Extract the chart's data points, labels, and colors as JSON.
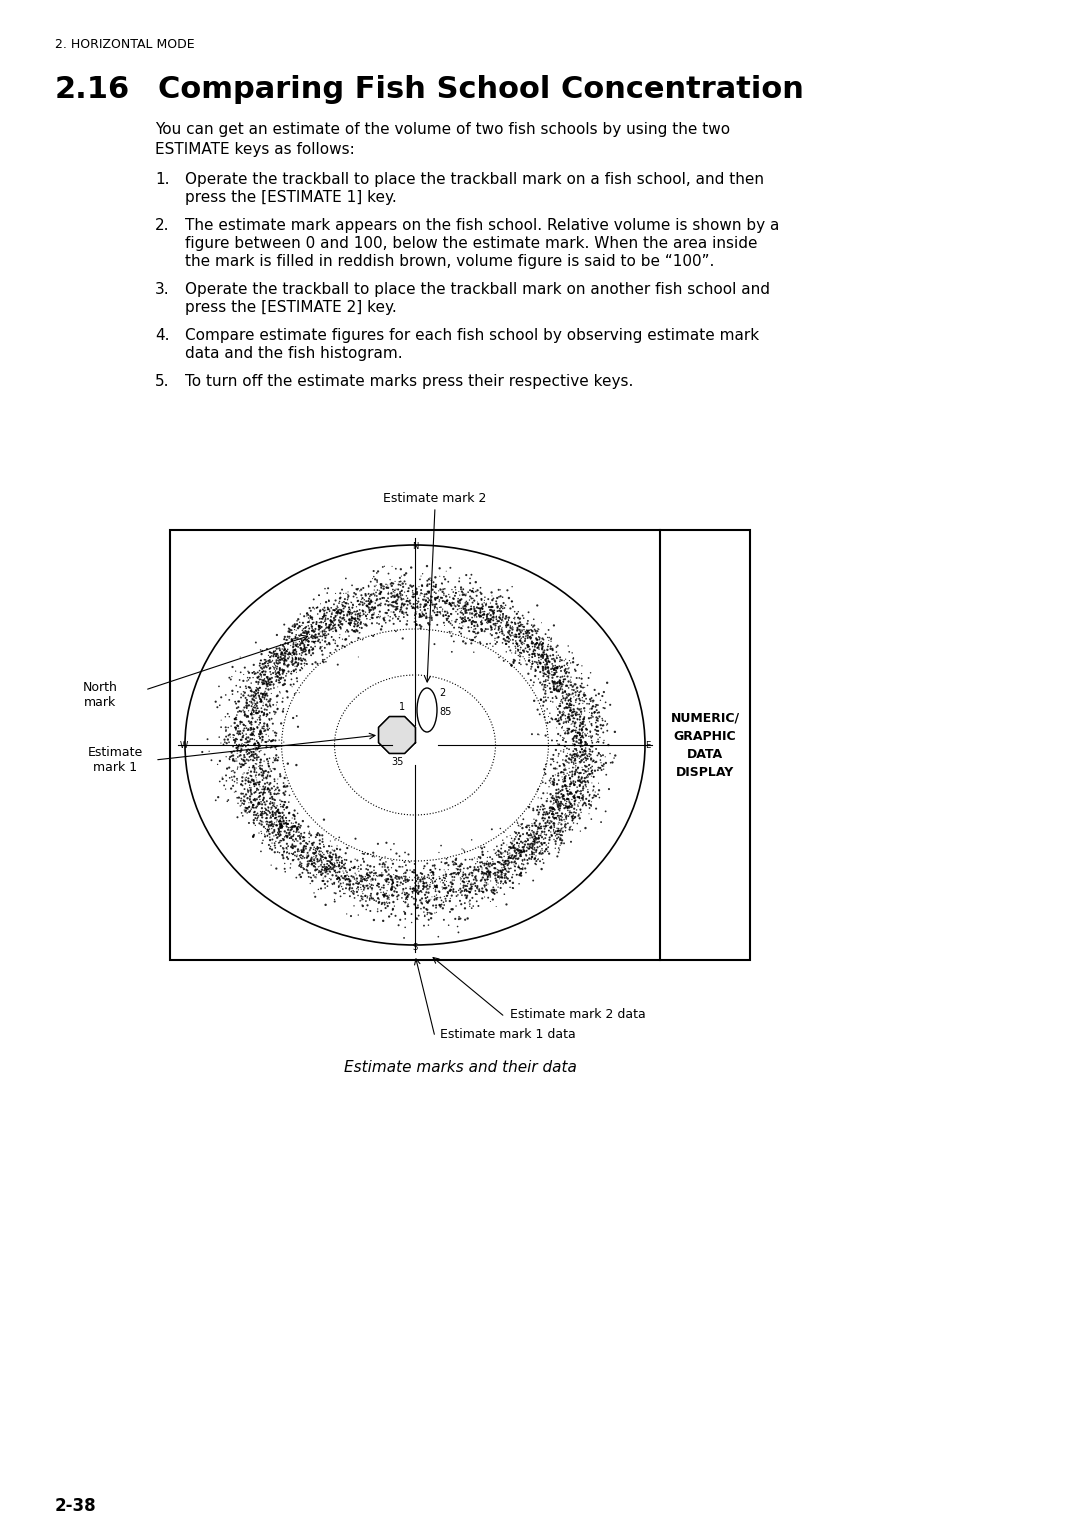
{
  "page_header": "2. HORIZONTAL MODE",
  "section_number": "2.16",
  "section_title": "Comparing Fish School Concentration",
  "intro_text": "You can get an estimate of the volume of two fish schools by using the two\nESTIMATE keys as follows:",
  "steps": [
    "Operate the trackball to place the trackball mark on a fish school, and then\npress the [ESTIMATE 1] key.",
    "The estimate mark appears on the fish school. Relative volume is shown by a\nfigure between 0 and 100, below the estimate mark. When the area inside\nthe mark is filled in reddish brown, volume figure is said to be “100”.",
    "Operate the trackball to place the trackball mark on another fish school and\npress the [ESTIMATE 2] key.",
    "Compare estimate figures for each fish school by observing estimate mark\ndata and the fish histogram.",
    "To turn off the estimate marks press their respective keys."
  ],
  "caption": "Estimate marks and their data",
  "diagram_labels": {
    "estimate_mark_2": "Estimate mark 2",
    "north_mark": "North\nmark",
    "estimate_mark_1": "Estimate\nmark 1",
    "numeric_display": "NUMERIC/\nGRAPHIC\nDATA\nDISPLAY",
    "estimate_mark_2_data": "Estimate mark 2 data",
    "estimate_mark_1_data": "Estimate mark 1 data"
  },
  "page_number": "2-38",
  "bg_color": "#ffffff",
  "text_color": "#000000",
  "diagram_bg": "#ffffff"
}
